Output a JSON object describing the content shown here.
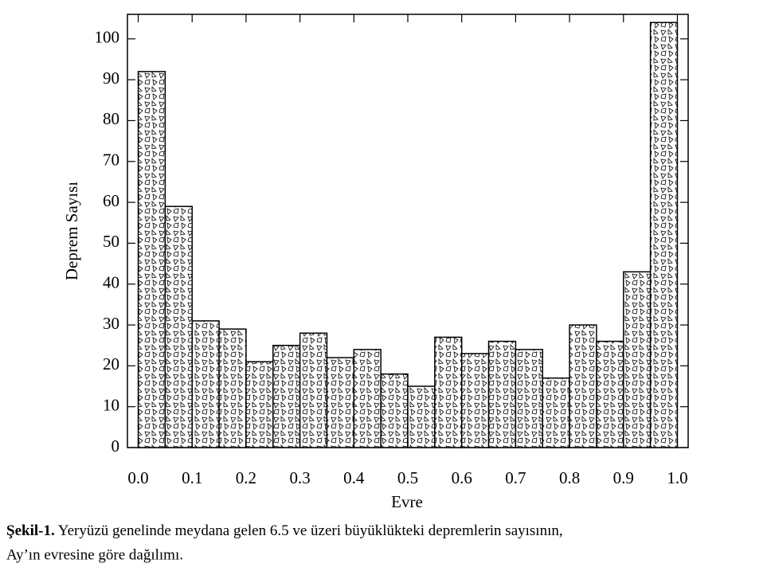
{
  "chart_data": {
    "type": "histogram",
    "xlabel": "Evre",
    "ylabel": "Deprem Sayısı",
    "bins": [
      0,
      0.05,
      0.1,
      0.15,
      0.2,
      0.25,
      0.3,
      0.35,
      0.4,
      0.45,
      0.5,
      0.55,
      0.6,
      0.65,
      0.7,
      0.75,
      0.8,
      0.85,
      0.9,
      0.95,
      1.0
    ],
    "values": [
      92,
      59,
      31,
      29,
      21,
      25,
      28,
      22,
      24,
      18,
      15,
      27,
      23,
      26,
      24,
      17,
      30,
      26,
      43,
      104
    ],
    "color": "#000000",
    "xlim": [
      -0.02,
      1.02
    ],
    "xticks": [
      {
        "value": 0,
        "label": "0.0"
      },
      0.1,
      0.2,
      0.3,
      0.4,
      0.5,
      0.6,
      0.7,
      0.8,
      0.9,
      {
        "value": 1,
        "label": "1.0"
      }
    ],
    "ylim": [
      0,
      106
    ],
    "yticks": [
      0,
      10,
      20,
      30,
      40,
      50,
      60,
      70,
      80,
      90,
      100
    ]
  },
  "caption": {
    "label": "Şekil-1.",
    "lines": [
      "Yeryüzü genelinde meydana gelen 6.5 ve üzeri büyüklükteki depremlerin sayısının,",
      "Ay’ın evresine göre dağılımı."
    ]
  }
}
